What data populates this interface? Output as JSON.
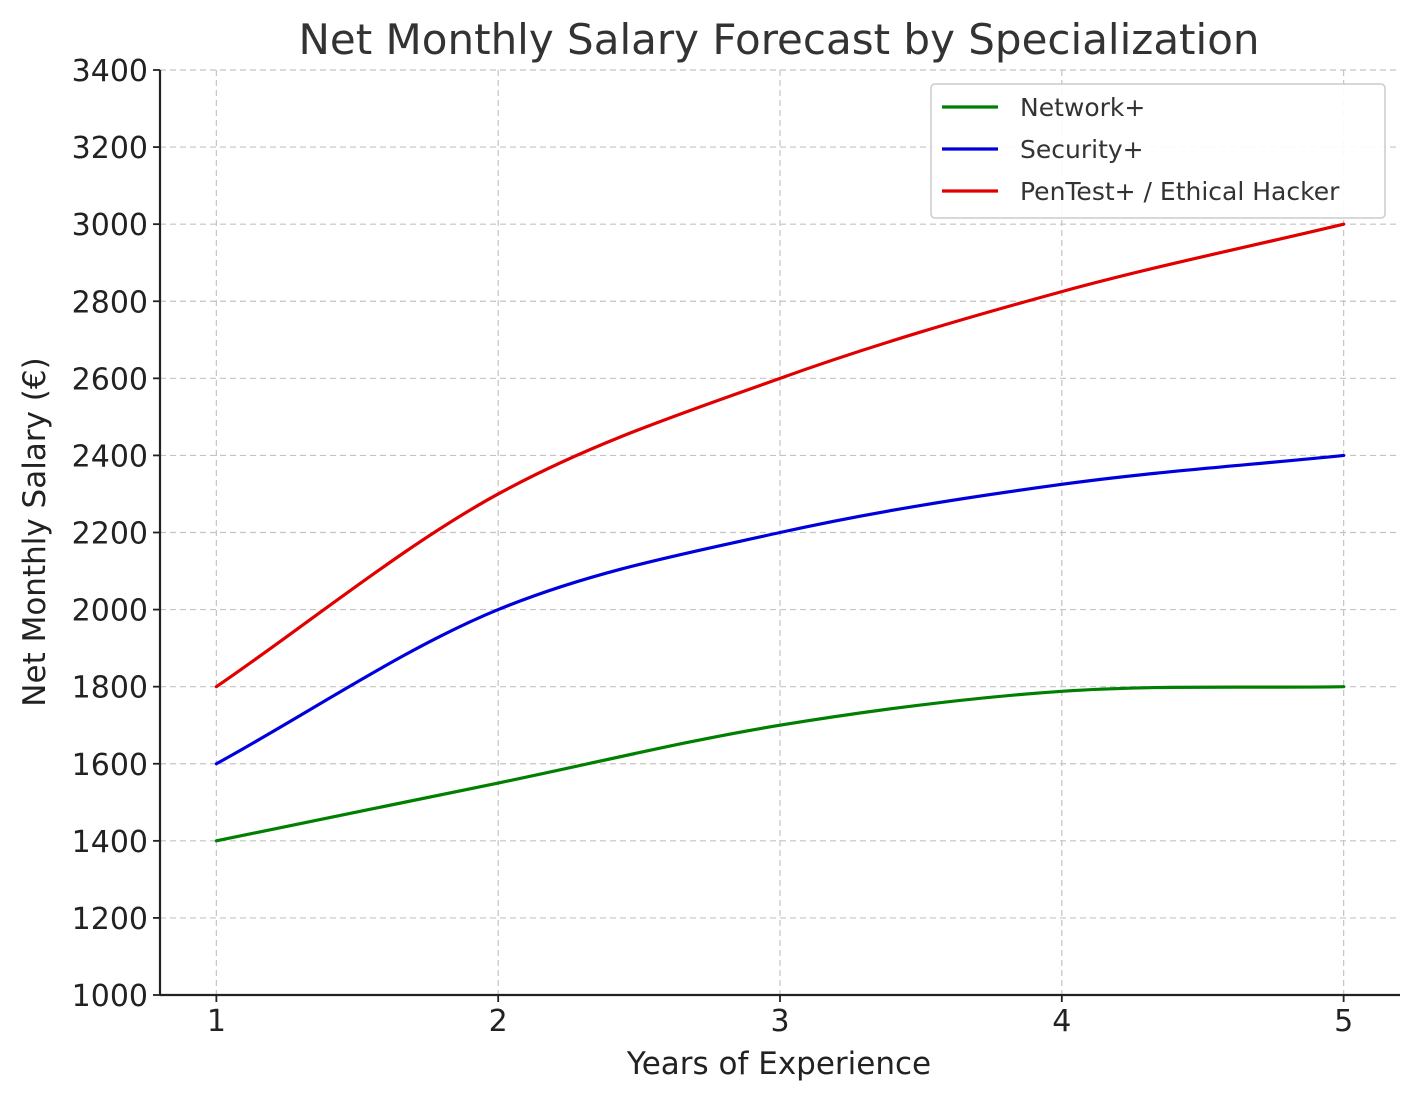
{
  "chart_data": {
    "type": "line",
    "title": "Net Monthly Salary Forecast by Specialization",
    "xlabel": "Years of Experience",
    "ylabel": "Net Monthly Salary (€)",
    "x": [
      1,
      2,
      3,
      4,
      5
    ],
    "xticks": [
      1,
      2,
      3,
      4,
      5
    ],
    "yticks": [
      1000,
      1200,
      1400,
      1600,
      1800,
      2000,
      2200,
      2400,
      2600,
      2800,
      3000,
      3200,
      3400
    ],
    "xlim": [
      0.8,
      5.2
    ],
    "ylim": [
      1000,
      3400
    ],
    "grid": true,
    "legend_position": "top-right",
    "series": [
      {
        "name": "Network+",
        "color": "#007f00",
        "values": [
          1400,
          1550,
          1700,
          1788,
          1800
        ]
      },
      {
        "name": "Security+",
        "color": "#0000dd",
        "values": [
          1600,
          2000,
          2200,
          2325,
          2400
        ]
      },
      {
        "name": "PenTest+ / Ethical Hacker",
        "color": "#e00000",
        "values": [
          1800,
          2300,
          2600,
          2825,
          3000
        ]
      }
    ]
  }
}
